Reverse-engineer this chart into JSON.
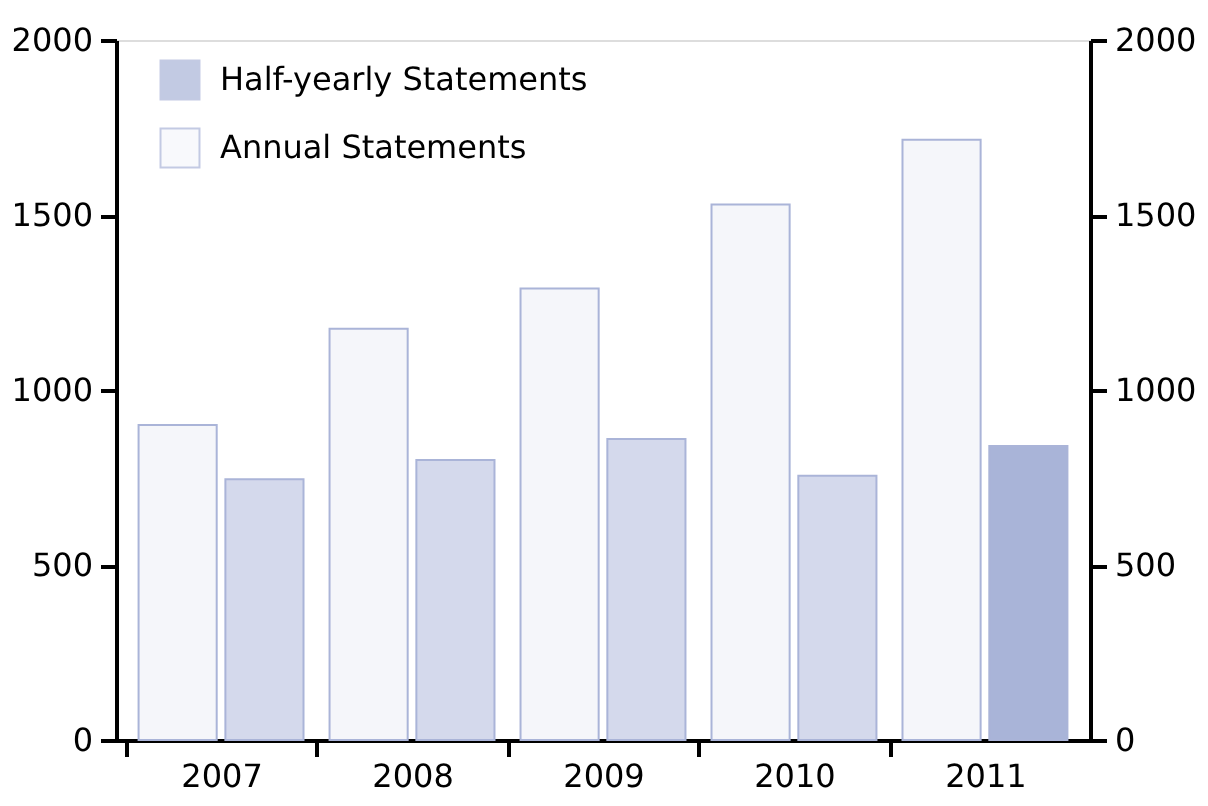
{
  "chart_data": {
    "type": "bar",
    "categories": [
      "2007",
      "2008",
      "2009",
      "2010",
      "2011"
    ],
    "series": [
      {
        "name": "Annual Statements",
        "color": "#aab4d8",
        "values": [
          900,
          1175,
          1290,
          1530,
          1715
        ]
      },
      {
        "name": "Half-yearly Statements",
        "color": "#a9b4d8",
        "colors": [
          "#d4d9ec",
          "#d4d9ec",
          "#d4d9ec",
          "#d4d9ec",
          "#a9b4d8"
        ],
        "values": [
          745,
          800,
          860,
          755,
          840
        ],
        "axis": "y2"
      }
    ],
    "ylim": [
      0,
      2000
    ],
    "yticks": [
      0,
      500,
      1000,
      1500,
      2000
    ],
    "y2lim": [
      0,
      2000
    ],
    "y2ticks": [
      0,
      500,
      1000,
      1500,
      2000
    ],
    "grid": false,
    "legend": "top left"
  }
}
